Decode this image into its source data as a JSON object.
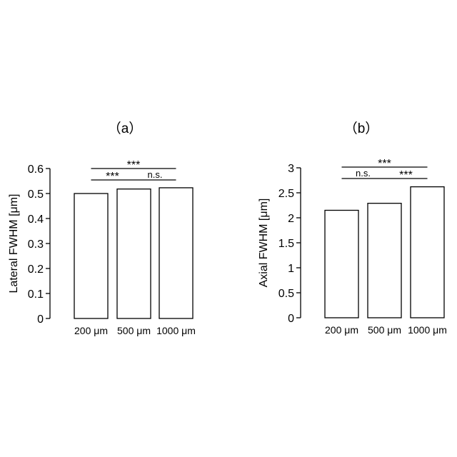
{
  "chart_data": [
    {
      "type": "bar",
      "panel_label": "（a）",
      "categories": [
        "200 μm",
        "500 μm",
        "1000 μm"
      ],
      "values": [
        0.5,
        0.518,
        0.523
      ],
      "ylabel": "Lateral FWHM [μm]",
      "ylim": [
        0,
        0.6
      ],
      "yticks": [
        "0",
        "0.1",
        "0.2",
        "0.3",
        "0.4",
        "0.5",
        "0.6"
      ],
      "grid": false,
      "significance": [
        {
          "from": 0,
          "to": 1,
          "label": "***",
          "level": 0
        },
        {
          "from": 1,
          "to": 2,
          "label": "n.s.",
          "level": 0
        },
        {
          "from": 0,
          "to": 2,
          "label": "***",
          "level": 1
        }
      ]
    },
    {
      "type": "bar",
      "panel_label": "（b）",
      "categories": [
        "200 μm",
        "500 μm",
        "1000 μm"
      ],
      "values": [
        2.15,
        2.29,
        2.62
      ],
      "ylabel": "Axial FWHM [μm]",
      "ylim": [
        0,
        3
      ],
      "yticks": [
        "0",
        "0.5",
        "1",
        "1.5",
        "2",
        "2.5",
        "3"
      ],
      "grid": false,
      "significance": [
        {
          "from": 0,
          "to": 1,
          "label": "n.s.",
          "level": 0
        },
        {
          "from": 1,
          "to": 2,
          "label": "***",
          "level": 0
        },
        {
          "from": 0,
          "to": 2,
          "label": "***",
          "level": 1
        }
      ]
    }
  ]
}
